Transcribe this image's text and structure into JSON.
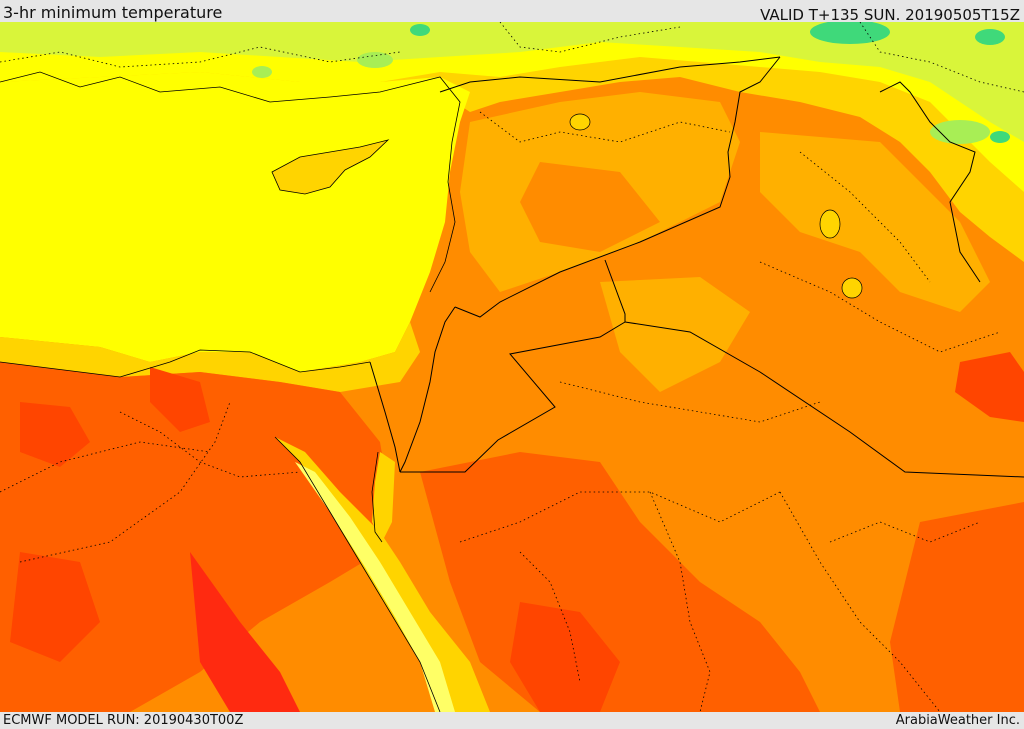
{
  "header": {
    "title": "3-hr minimum temperature",
    "valid": "VALID T+135 SUN. 20190505T15Z"
  },
  "footer": {
    "model_run": "ECMWF MODEL RUN: 20190430T00Z",
    "credit": "ArabiaWeather Inc."
  },
  "palette": {
    "green": "#3fd97a",
    "light_green": "#a8ee55",
    "yellow_green": "#d9f53a",
    "yellow": "#ffff00",
    "gold": "#ffd400",
    "light_orange": "#ffb000",
    "orange": "#ff8c00",
    "dark_orange": "#ff6000",
    "red_orange": "#ff4500",
    "red": "#ff2a10",
    "border": "#000000"
  }
}
